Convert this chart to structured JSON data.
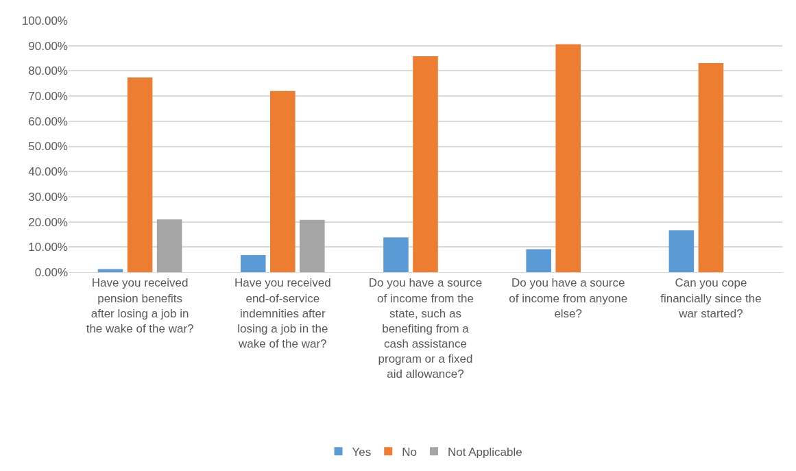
{
  "chart_data": {
    "type": "bar",
    "categories": [
      "Have you received pension benefits after losing a job in the wake of the war?",
      "Have you received end-of-service indemnities after losing a job in the wake of the war?",
      "Do you have a source of income from the state, such as benefiting from a cash assistance program or a fixed aid allowance?",
      "Do you have a source of income from anyone else?",
      "Can you cope financially since the war started?"
    ],
    "series": [
      {
        "name": "Yes",
        "color": "#5b9bd5",
        "values": [
          1.2,
          6.8,
          13.8,
          9.1,
          16.6
        ]
      },
      {
        "name": "No",
        "color": "#ed7d31",
        "values": [
          77.4,
          72.0,
          85.8,
          90.6,
          83.1
        ]
      },
      {
        "name": "Not Applicable",
        "color": "#a5a5a5",
        "values": [
          21.0,
          20.8,
          null,
          null,
          null
        ]
      }
    ],
    "ylim": [
      0,
      100
    ],
    "yticks": [
      {
        "value": 0,
        "label": "0.00%"
      },
      {
        "value": 10,
        "label": "10.00%"
      },
      {
        "value": 20,
        "label": "20.00%"
      },
      {
        "value": 30,
        "label": "30.00%"
      },
      {
        "value": 40,
        "label": "40.00%"
      },
      {
        "value": 50,
        "label": "50.00%"
      },
      {
        "value": 60,
        "label": "60.00%"
      },
      {
        "value": 70,
        "label": "70.00%"
      },
      {
        "value": 80,
        "label": "80.00%"
      },
      {
        "value": 90,
        "label": "90.00%"
      },
      {
        "value": 100,
        "label": "100.00%"
      }
    ],
    "grid": "y",
    "legend": "bottom"
  }
}
